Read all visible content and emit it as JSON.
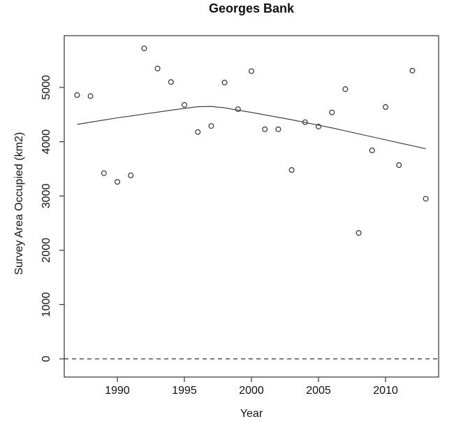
{
  "page": {
    "background": "#ffffff"
  },
  "chart_data": {
    "type": "scatter",
    "title": "Georges Bank",
    "xlabel": "Year",
    "ylabel": "Survey Area Occupied (km2)",
    "years": [
      1987,
      1988,
      1989,
      1990,
      1991,
      1992,
      1993,
      1994,
      1995,
      1996,
      1997,
      1998,
      1999,
      2000,
      2001,
      2002,
      2003,
      2004,
      2005,
      2006,
      2007,
      2008,
      2009,
      2010,
      2011,
      2012,
      2013
    ],
    "values": [
      4860,
      4840,
      3420,
      3260,
      3380,
      5720,
      5350,
      5100,
      4680,
      4180,
      4290,
      5090,
      4600,
      5300,
      4230,
      4230,
      3480,
      4360,
      4280,
      4540,
      4970,
      2320,
      3840,
      4640,
      3570,
      5310,
      2950
    ],
    "trend": {
      "label": "smoothed-trend-line",
      "years": [
        1987,
        1988,
        1989,
        1990,
        1991,
        1992,
        1993,
        1994,
        1995,
        1996,
        1997,
        1998,
        1999,
        2000,
        2001,
        2002,
        2003,
        2004,
        2005,
        2006,
        2007,
        2008,
        2009,
        2010,
        2011,
        2012,
        2013
      ],
      "values": [
        4320,
        4360,
        4400,
        4440,
        4475,
        4510,
        4545,
        4580,
        4615,
        4645,
        4650,
        4625,
        4580,
        4540,
        4495,
        4450,
        4405,
        4355,
        4305,
        4255,
        4200,
        4145,
        4090,
        4035,
        3980,
        3925,
        3870
      ]
    },
    "reference_line": {
      "value": 0,
      "style": "dashed"
    },
    "xticks": [
      1990,
      1995,
      2000,
      2005,
      2010
    ],
    "yticks": [
      0,
      1000,
      2000,
      3000,
      4000,
      5000
    ],
    "xlim": [
      1986.04,
      2013.96
    ],
    "ylim": [
      -335,
      5954
    ],
    "grid": false,
    "legend": null,
    "marker": "open-circle",
    "colors": {
      "line": "#333333",
      "text": "#111111",
      "background": "#ffffff"
    }
  }
}
